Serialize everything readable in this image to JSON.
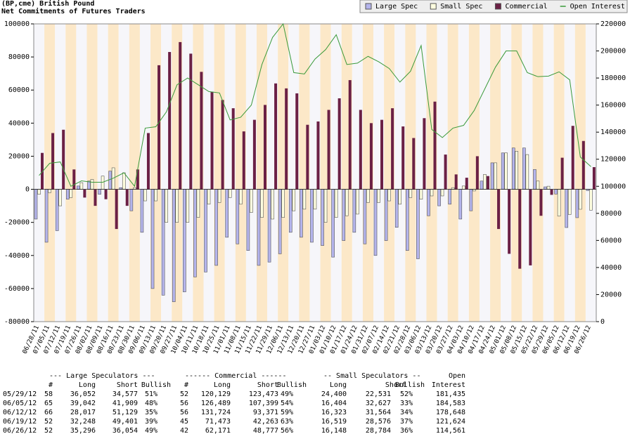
{
  "chart_data": {
    "type": "bar",
    "title": "(BP,cme) British Pound",
    "subtitle": "Net Commitments of Futures Traders",
    "categories": [
      "06/28/11",
      "07/05/11",
      "07/12/11",
      "07/19/11",
      "07/26/11",
      "08/02/11",
      "08/09/11",
      "08/16/11",
      "08/23/11",
      "08/30/11",
      "09/06/11",
      "09/13/11",
      "09/20/11",
      "09/27/11",
      "10/04/11",
      "10/11/11",
      "10/18/11",
      "10/25/11",
      "11/01/11",
      "11/08/11",
      "11/15/11",
      "11/22/11",
      "11/29/11",
      "12/06/11",
      "12/13/11",
      "12/20/11",
      "12/27/11",
      "01/03/12",
      "01/10/12",
      "01/17/12",
      "01/24/12",
      "01/31/12",
      "02/07/12",
      "02/14/12",
      "02/21/12",
      "02/28/12",
      "03/06/12",
      "03/13/12",
      "03/20/12",
      "03/27/12",
      "04/03/12",
      "04/10/12",
      "04/17/12",
      "04/24/12",
      "05/01/12",
      "05/08/12",
      "05/15/12",
      "05/22/12",
      "05/29/12",
      "06/05/12",
      "06/12/12",
      "06/19/12",
      "06/26/12"
    ],
    "series": [
      {
        "name": "Large Spec",
        "color": "#b4b4ec",
        "values": [
          -18000,
          -32000,
          -25000,
          -6000,
          2000,
          5000,
          -3000,
          11000,
          1000,
          -13000,
          -26000,
          -60000,
          -64000,
          -68000,
          -62000,
          -53000,
          -50000,
          -46000,
          -29000,
          -33000,
          -37000,
          -46000,
          -44000,
          -39000,
          -26000,
          -29000,
          -32000,
          -34000,
          -41000,
          -31000,
          -26000,
          -33000,
          -40000,
          -31000,
          -23000,
          -37000,
          -42000,
          -16000,
          -10000,
          -9000,
          -18000,
          -13000,
          5000,
          16000,
          22000,
          25000,
          25000,
          12000,
          1475,
          -2867,
          -23112,
          -17153,
          -758
        ]
      },
      {
        "name": "Small Spec",
        "color": "#ffffe0",
        "values": [
          -3000,
          -2000,
          -10000,
          -5000,
          4000,
          6000,
          8000,
          13000,
          10000,
          1000,
          -7000,
          -7000,
          -20000,
          -20000,
          -20000,
          -17000,
          -9000,
          -8000,
          -5000,
          -9000,
          -14000,
          -17000,
          -18000,
          -17000,
          -13000,
          -12000,
          -12000,
          -20000,
          -17000,
          -16000,
          -15000,
          -8000,
          -8000,
          -7000,
          -9000,
          -5000,
          -6000,
          -4000,
          -4000,
          1000,
          2000,
          -1000,
          9000,
          16000,
          22000,
          23000,
          21000,
          5000,
          1869,
          -16223,
          -15241,
          -12057,
          -12636
        ]
      },
      {
        "name": "Commercial",
        "color": "#6b2045",
        "values": [
          22000,
          34000,
          36000,
          12000,
          -5000,
          -10000,
          -6000,
          -24000,
          -10000,
          12000,
          34000,
          75000,
          83000,
          89000,
          82000,
          71000,
          59000,
          54000,
          49000,
          35000,
          42000,
          51000,
          64000,
          61000,
          58000,
          39000,
          41000,
          48000,
          55000,
          66000,
          48000,
          40000,
          42000,
          49000,
          38000,
          31000,
          43000,
          53000,
          21000,
          9000,
          7000,
          20000,
          8000,
          -24000,
          -39000,
          -48000,
          -46000,
          -16000,
          -3344,
          19090,
          38353,
          29210,
          13394
        ]
      },
      {
        "name": "Open Interest",
        "type": "line",
        "axis": "y2",
        "color": "#3a9a3a",
        "values": [
          108000,
          117000,
          118000,
          100000,
          104000,
          103000,
          103000,
          106000,
          110000,
          100000,
          143000,
          144000,
          155000,
          175000,
          180000,
          175000,
          170000,
          169000,
          149000,
          151000,
          160000,
          190000,
          210000,
          220000,
          184000,
          183000,
          194000,
          201000,
          212000,
          190000,
          191000,
          196000,
          192000,
          187000,
          177000,
          185000,
          204000,
          142000,
          136000,
          143000,
          145000,
          156000,
          172000,
          188000,
          200000,
          200000,
          184000,
          181000,
          181435,
          184583,
          178648,
          121624,
          114561
        ]
      }
    ],
    "ylim": [
      -80000,
      100000
    ],
    "yticks": [
      -80000,
      -60000,
      -40000,
      -20000,
      0,
      20000,
      40000,
      60000,
      80000,
      100000
    ],
    "y2lim": [
      0,
      220000
    ],
    "y2ticks": [
      0,
      20000,
      40000,
      60000,
      80000,
      100000,
      120000,
      140000,
      160000,
      180000,
      200000,
      220000
    ],
    "legend": "top-right"
  },
  "table": {
    "group_headers": [
      "--- Large Speculators ---",
      "------ Commercial ------",
      "-- Small Speculators --",
      "Open"
    ],
    "columns": [
      "#",
      "Long",
      "Short",
      "Bullish",
      "#",
      "Long",
      "Short",
      "Bullish",
      "Long",
      "Short",
      "Bullish",
      "Interest"
    ],
    "rows": [
      [
        "05/29/12",
        "58",
        "36,052",
        "34,577",
        "51%",
        "52",
        "120,129",
        "123,473",
        "49%",
        "24,400",
        "22,531",
        "52%",
        "181,435"
      ],
      [
        "06/05/12",
        "65",
        "39,042",
        "41,909",
        "48%",
        "56",
        "126,489",
        "107,399",
        "54%",
        "16,404",
        "32,627",
        "33%",
        "184,583"
      ],
      [
        "06/12/12",
        "66",
        "28,017",
        "51,129",
        "35%",
        "56",
        "131,724",
        "93,371",
        "59%",
        "16,323",
        "31,564",
        "34%",
        "178,648"
      ],
      [
        "06/19/12",
        "52",
        "32,248",
        "49,401",
        "39%",
        "45",
        "71,473",
        "42,263",
        "63%",
        "16,519",
        "28,576",
        "37%",
        "121,624"
      ],
      [
        "06/26/12",
        "52",
        "35,296",
        "36,054",
        "49%",
        "42",
        "62,171",
        "48,777",
        "56%",
        "16,148",
        "28,784",
        "36%",
        "114,561"
      ]
    ]
  }
}
